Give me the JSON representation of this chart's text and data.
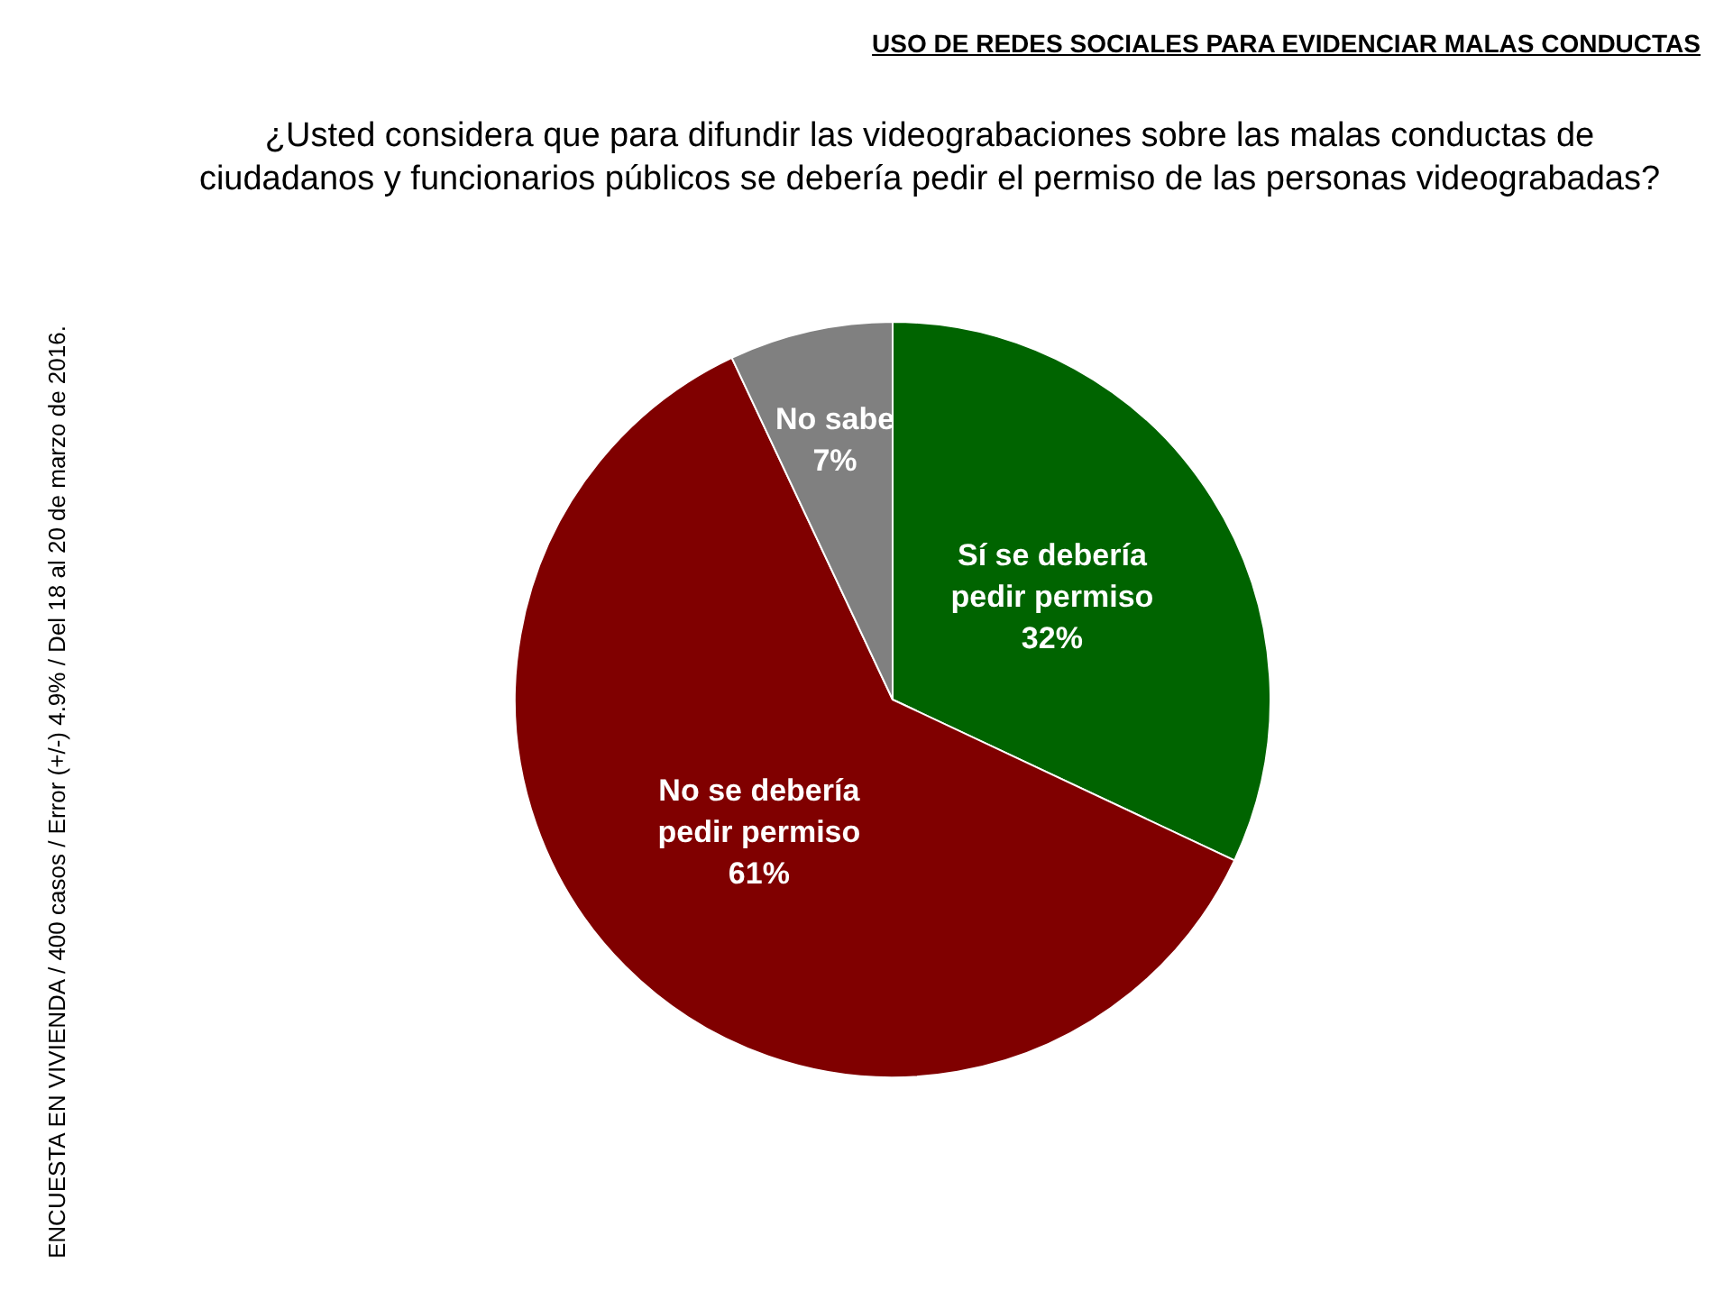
{
  "chart_data": {
    "type": "pie",
    "title": "USO DE REDES SOCIALES PARA EVIDENCIAR MALAS CONDUCTAS",
    "subtitle": "¿Usted considera que para difundir las videograbaciones sobre las malas conductas de ciudadanos y funcionarios públicos se debería pedir el permiso de las personas videograbadas?",
    "categories": [
      "Sí se debería pedir permiso",
      "No se debería pedir permiso",
      "No sabe"
    ],
    "values": [
      32,
      61,
      7
    ],
    "colors": [
      "#006400",
      "#800000",
      "#808080"
    ],
    "value_labels": [
      "32%",
      "61%",
      "7%"
    ],
    "annotations": [
      "ENCUESTA EN VIVIENDA / 400 casos / Error (+/-) 4.9% / Del 18 al 20 de marzo de 2016."
    ]
  }
}
